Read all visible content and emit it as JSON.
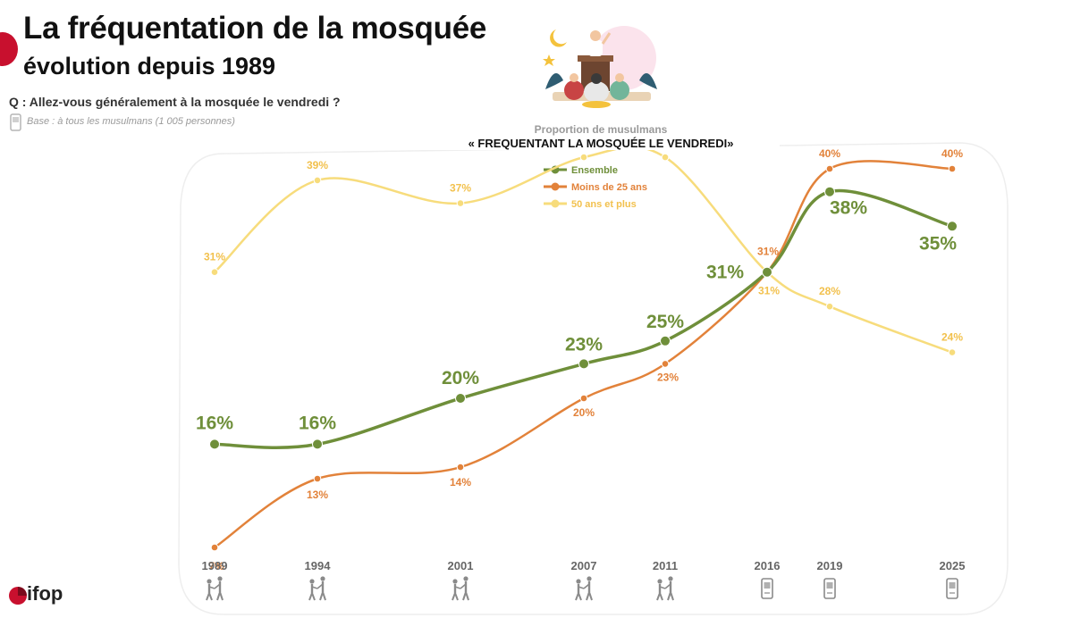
{
  "header": {
    "title": "La fréquentation de la mosquée",
    "subtitle": "évolution depuis 1989",
    "question": "Q : Allez-vous généralement à la mosquée le vendredi ?",
    "base": "Base : à tous les musulmans (1 005 personnes)"
  },
  "brand": {
    "logo_text": "ifop",
    "accent": "#c8102e"
  },
  "chart_data": {
    "type": "line",
    "title": "« FREQUENTANT LA MOSQUÉE LE VENDREDI»",
    "subtitle": "Proportion de musulmans",
    "x": [
      "1989",
      "1994",
      "2001",
      "2007",
      "2011",
      "2016",
      "2019",
      "2025"
    ],
    "series": [
      {
        "name": "Ensemble",
        "color": "#6f8f3a",
        "values": [
          16,
          16,
          20,
          23,
          25,
          31,
          38,
          35
        ],
        "labels": [
          "16%",
          "16%",
          "20%",
          "23%",
          "25%",
          "31%",
          "38%",
          "35%"
        ]
      },
      {
        "name": "Moins de 25 ans",
        "color": "#e2823a",
        "values": [
          7,
          13,
          14,
          20,
          23,
          31,
          40,
          40
        ],
        "labels": [
          "7%",
          "13%",
          "14%",
          "20%",
          "23%",
          "31%",
          "40%",
          "40%"
        ]
      },
      {
        "name": "50 ans et plus",
        "color": "#f7dc7c",
        "values": [
          31,
          39,
          37,
          41,
          41,
          31,
          28,
          24
        ],
        "labels": [
          "31%",
          "39%",
          "37%",
          "41%",
          "41%",
          "31%",
          "28%",
          "24%"
        ]
      }
    ],
    "survey_mode": [
      "face-to-face",
      "face-to-face",
      "face-to-face",
      "face-to-face",
      "face-to-face",
      "phone",
      "phone",
      "phone"
    ],
    "legend_position": "top-center",
    "grid": false
  }
}
